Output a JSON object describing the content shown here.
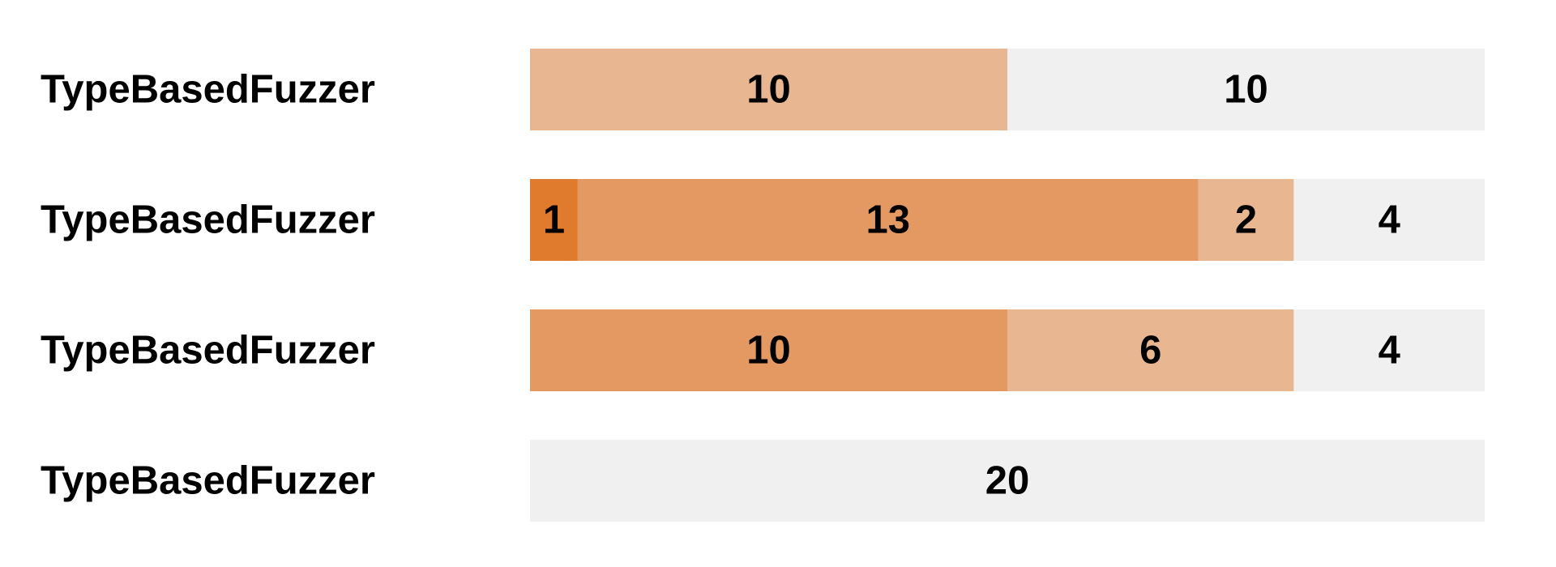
{
  "chart_data": {
    "type": "bar",
    "orientation": "horizontal",
    "stacked": true,
    "categories": [
      "TypeBasedFuzzer",
      "TypeBasedFuzzer",
      "TypeBasedFuzzer",
      "TypeBasedFuzzer"
    ],
    "total": 20,
    "segment_colors": [
      "#e07b2e",
      "#e49862",
      "#e8b690",
      "#f0f0f0"
    ],
    "series": [
      {
        "values": [
          0,
          1,
          0,
          0
        ]
      },
      {
        "values": [
          0,
          13,
          10,
          0
        ]
      },
      {
        "values": [
          10,
          2,
          6,
          0
        ]
      },
      {
        "values": [
          10,
          4,
          4,
          20
        ]
      }
    ],
    "xlim": [
      0,
      20
    ],
    "grid": false,
    "legend": "none"
  }
}
